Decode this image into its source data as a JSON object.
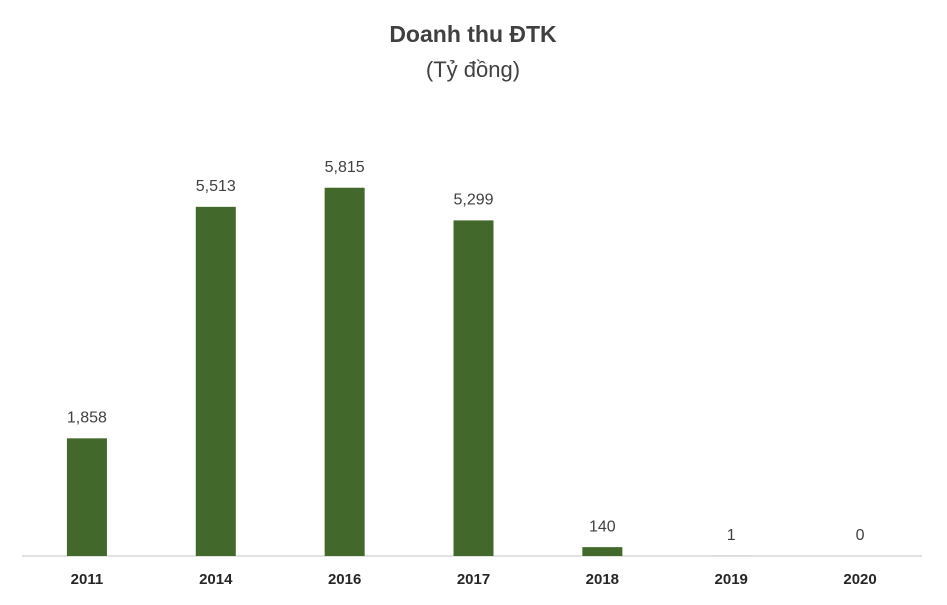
{
  "chart_data": {
    "type": "bar",
    "title": "Doanh thu ĐTK",
    "subtitle": "(Tỷ đồng)",
    "categories": [
      "2011",
      "2014",
      "2016",
      "2017",
      "2018",
      "2019",
      "2020"
    ],
    "values": [
      1858,
      5513,
      5815,
      5299,
      140,
      1,
      0
    ],
    "value_labels": [
      "1,858",
      "5,513",
      "5,815",
      "5,299",
      "140",
      "1",
      "0"
    ],
    "color": "#43682b",
    "ylim": [
      0,
      6000
    ]
  }
}
